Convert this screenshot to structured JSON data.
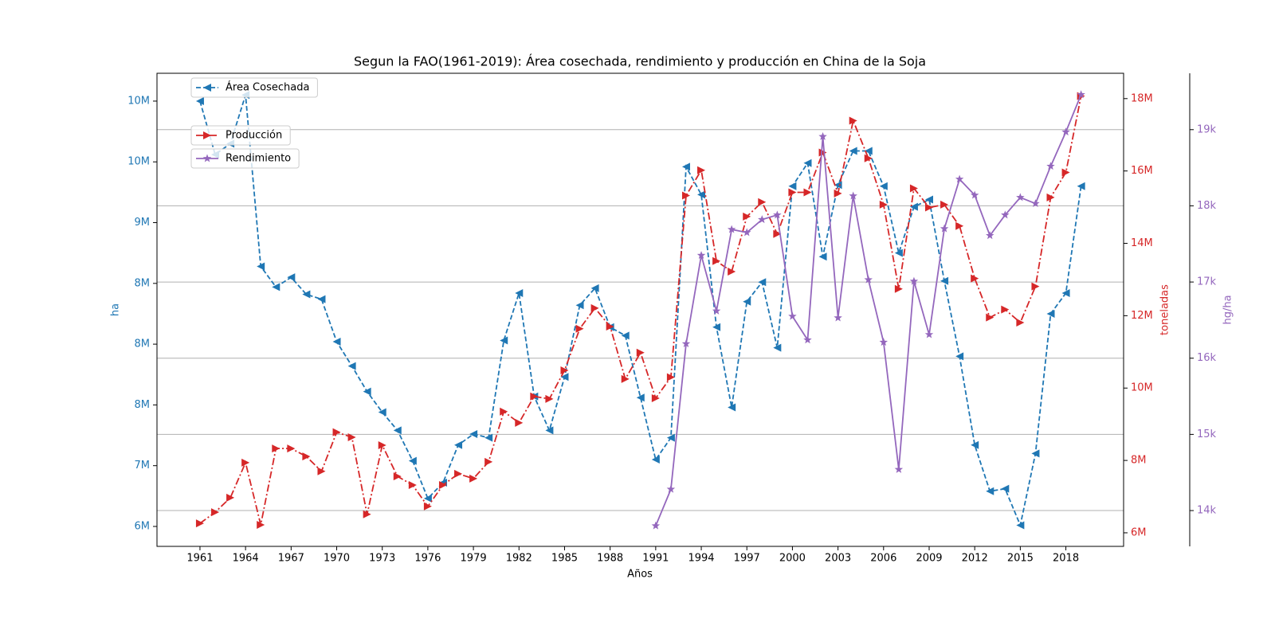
{
  "chart_data": {
    "type": "line",
    "title": "Segun la FAO(1961-2019): Área cosechada, rendimiento y producción en China de la Soja",
    "x_label": "Años",
    "x": [
      1961,
      1962,
      1963,
      1964,
      1965,
      1966,
      1967,
      1968,
      1969,
      1970,
      1971,
      1972,
      1973,
      1974,
      1975,
      1976,
      1977,
      1978,
      1979,
      1980,
      1981,
      1982,
      1983,
      1984,
      1985,
      1986,
      1987,
      1988,
      1989,
      1990,
      1991,
      1992,
      1993,
      1994,
      1995,
      1996,
      1997,
      1998,
      1999,
      2000,
      2001,
      2002,
      2003,
      2004,
      2005,
      2006,
      2007,
      2008,
      2009,
      2010,
      2011,
      2012,
      2013,
      2014,
      2015,
      2016,
      2017,
      2018,
      2019
    ],
    "xlim": [
      1958.17,
      2021.8
    ],
    "xticks": [
      1961,
      1964,
      1967,
      1970,
      1973,
      1976,
      1979,
      1982,
      1985,
      1988,
      1991,
      1994,
      1997,
      2000,
      2003,
      2006,
      2009,
      2012,
      2015,
      2018
    ],
    "y_label": "ha",
    "ylim": [
      6336000,
      10229000
    ],
    "yticks": [
      {
        "value": 6500000,
        "label": "6M"
      },
      {
        "value": 7000000,
        "label": "7M"
      },
      {
        "value": 7500000,
        "label": "8M"
      },
      {
        "value": 8000000,
        "label": "8M"
      },
      {
        "value": 8500000,
        "label": "8M"
      },
      {
        "value": 9000000,
        "label": "9M"
      },
      {
        "value": 9500000,
        "label": "10M"
      },
      {
        "value": 10000000,
        "label": "10M"
      }
    ],
    "y2_label": "toneladas",
    "y2lim": [
      5625000,
      18700000
    ],
    "y2ticks": [
      {
        "value": 6000000,
        "label": "6M"
      },
      {
        "value": 8000000,
        "label": "8M"
      },
      {
        "value": 10000000,
        "label": "10M"
      },
      {
        "value": 12000000,
        "label": "12M"
      },
      {
        "value": 14000000,
        "label": "14M"
      },
      {
        "value": 16000000,
        "label": "16M"
      },
      {
        "value": 18000000,
        "label": "18M"
      }
    ],
    "y3_label": "hg/ha",
    "y3lim": [
      13530,
      19740
    ],
    "y3ticks": [
      {
        "value": 14000,
        "label": "14k"
      },
      {
        "value": 15000,
        "label": "15k"
      },
      {
        "value": 16000,
        "label": "16k"
      },
      {
        "value": 17000,
        "label": "17k"
      },
      {
        "value": 18000,
        "label": "18k"
      },
      {
        "value": 19000,
        "label": "19k"
      }
    ],
    "grid_axis": "y3",
    "series": [
      {
        "name": "Área Cosechada",
        "color": "#1f77b4",
        "axis": "y",
        "linestyle": "dashed",
        "marker": "triangle-left",
        "values": [
          10000000,
          9560000,
          9650000,
          10050000,
          8640000,
          8470000,
          8550000,
          8410000,
          8370000,
          8020000,
          7820000,
          7610000,
          7440000,
          7290000,
          7040000,
          6730000,
          6860000,
          7170000,
          7260000,
          7230000,
          8030000,
          8420000,
          7570000,
          7290000,
          7730000,
          8320000,
          8460000,
          8140000,
          8070000,
          7560000,
          7050000,
          7230000,
          9460000,
          9230000,
          8140000,
          7480000,
          8350000,
          8510000,
          7970000,
          9300000,
          9490000,
          8720000,
          9310000,
          9590000,
          9590000,
          9300000,
          8750000,
          9130000,
          9190000,
          8520000,
          7900000,
          7170000,
          6790000,
          6810000,
          6510000,
          7100000,
          8250000,
          8420000,
          9300000
        ]
      },
      {
        "name": "Producción",
        "color": "#d62728",
        "axis": "y2",
        "linestyle": "dashdot",
        "marker": "triangle-right",
        "values": [
          6260000,
          6570000,
          6970000,
          7940000,
          6220000,
          8330000,
          8330000,
          8110000,
          7700000,
          8780000,
          8640000,
          6510000,
          8420000,
          7560000,
          7320000,
          6730000,
          7320000,
          7630000,
          7500000,
          7960000,
          9350000,
          9040000,
          9770000,
          9700000,
          10490000,
          11640000,
          12210000,
          11700000,
          10250000,
          10980000,
          9720000,
          10300000,
          15320000,
          16020000,
          13510000,
          13220000,
          14740000,
          15140000,
          14260000,
          15410000,
          15410000,
          16510000,
          15380000,
          17390000,
          16350000,
          15070000,
          12740000,
          15520000,
          14990000,
          15070000,
          14480000,
          13030000,
          11950000,
          12170000,
          11810000,
          12810000,
          15270000,
          15960000,
          18070000
        ]
      },
      {
        "name": "Rendimiento",
        "color": "#9467bd",
        "axis": "y3",
        "linestyle": "solid",
        "marker": "star",
        "values": [
          null,
          null,
          null,
          null,
          null,
          null,
          null,
          null,
          null,
          null,
          null,
          null,
          null,
          null,
          null,
          null,
          null,
          null,
          null,
          null,
          null,
          null,
          null,
          null,
          null,
          null,
          null,
          null,
          null,
          null,
          13800,
          14280,
          16190,
          17350,
          16620,
          17690,
          17650,
          17820,
          17880,
          16550,
          16240,
          18910,
          16530,
          18130,
          17030,
          16210,
          14540,
          17010,
          16310,
          17700,
          18350,
          18140,
          17610,
          17880,
          18110,
          18030,
          18520,
          18970,
          19460
        ]
      }
    ]
  }
}
